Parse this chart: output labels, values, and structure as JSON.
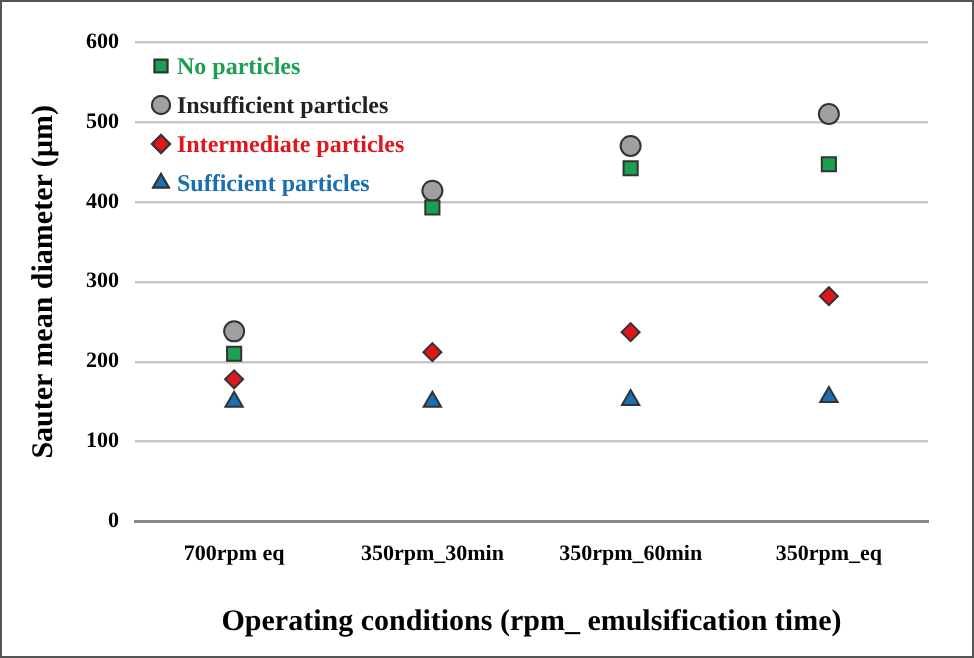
{
  "chart_data": {
    "type": "scatter",
    "xlabel": "Operating conditions (rpm_ emulsification time)",
    "ylabel": "Sauter mean diameter (µm)",
    "categories": [
      "700rpm eq",
      "350rpm_30min",
      "350rpm_60min",
      "350rpm_eq"
    ],
    "series": [
      {
        "name": "No particles",
        "color": "#1aa050",
        "marker": "square",
        "values": [
          210,
          393,
          442,
          447
        ]
      },
      {
        "name": "Insufficient particles",
        "color": "#a0a0a0",
        "marker": "circle",
        "values": [
          238,
          414,
          470,
          510
        ]
      },
      {
        "name": "Intermediate particles",
        "color": "#e0161c",
        "marker": "diamond",
        "values": [
          178,
          212,
          237,
          282
        ]
      },
      {
        "name": "Sufficient particles",
        "color": "#1a6fb0",
        "marker": "triangle",
        "values": [
          150,
          150,
          152,
          156
        ]
      }
    ],
    "ylim": [
      0,
      600
    ],
    "yticks": [
      0,
      100,
      200,
      300,
      400,
      500,
      600
    ],
    "grid": "y",
    "legend": "top left"
  }
}
